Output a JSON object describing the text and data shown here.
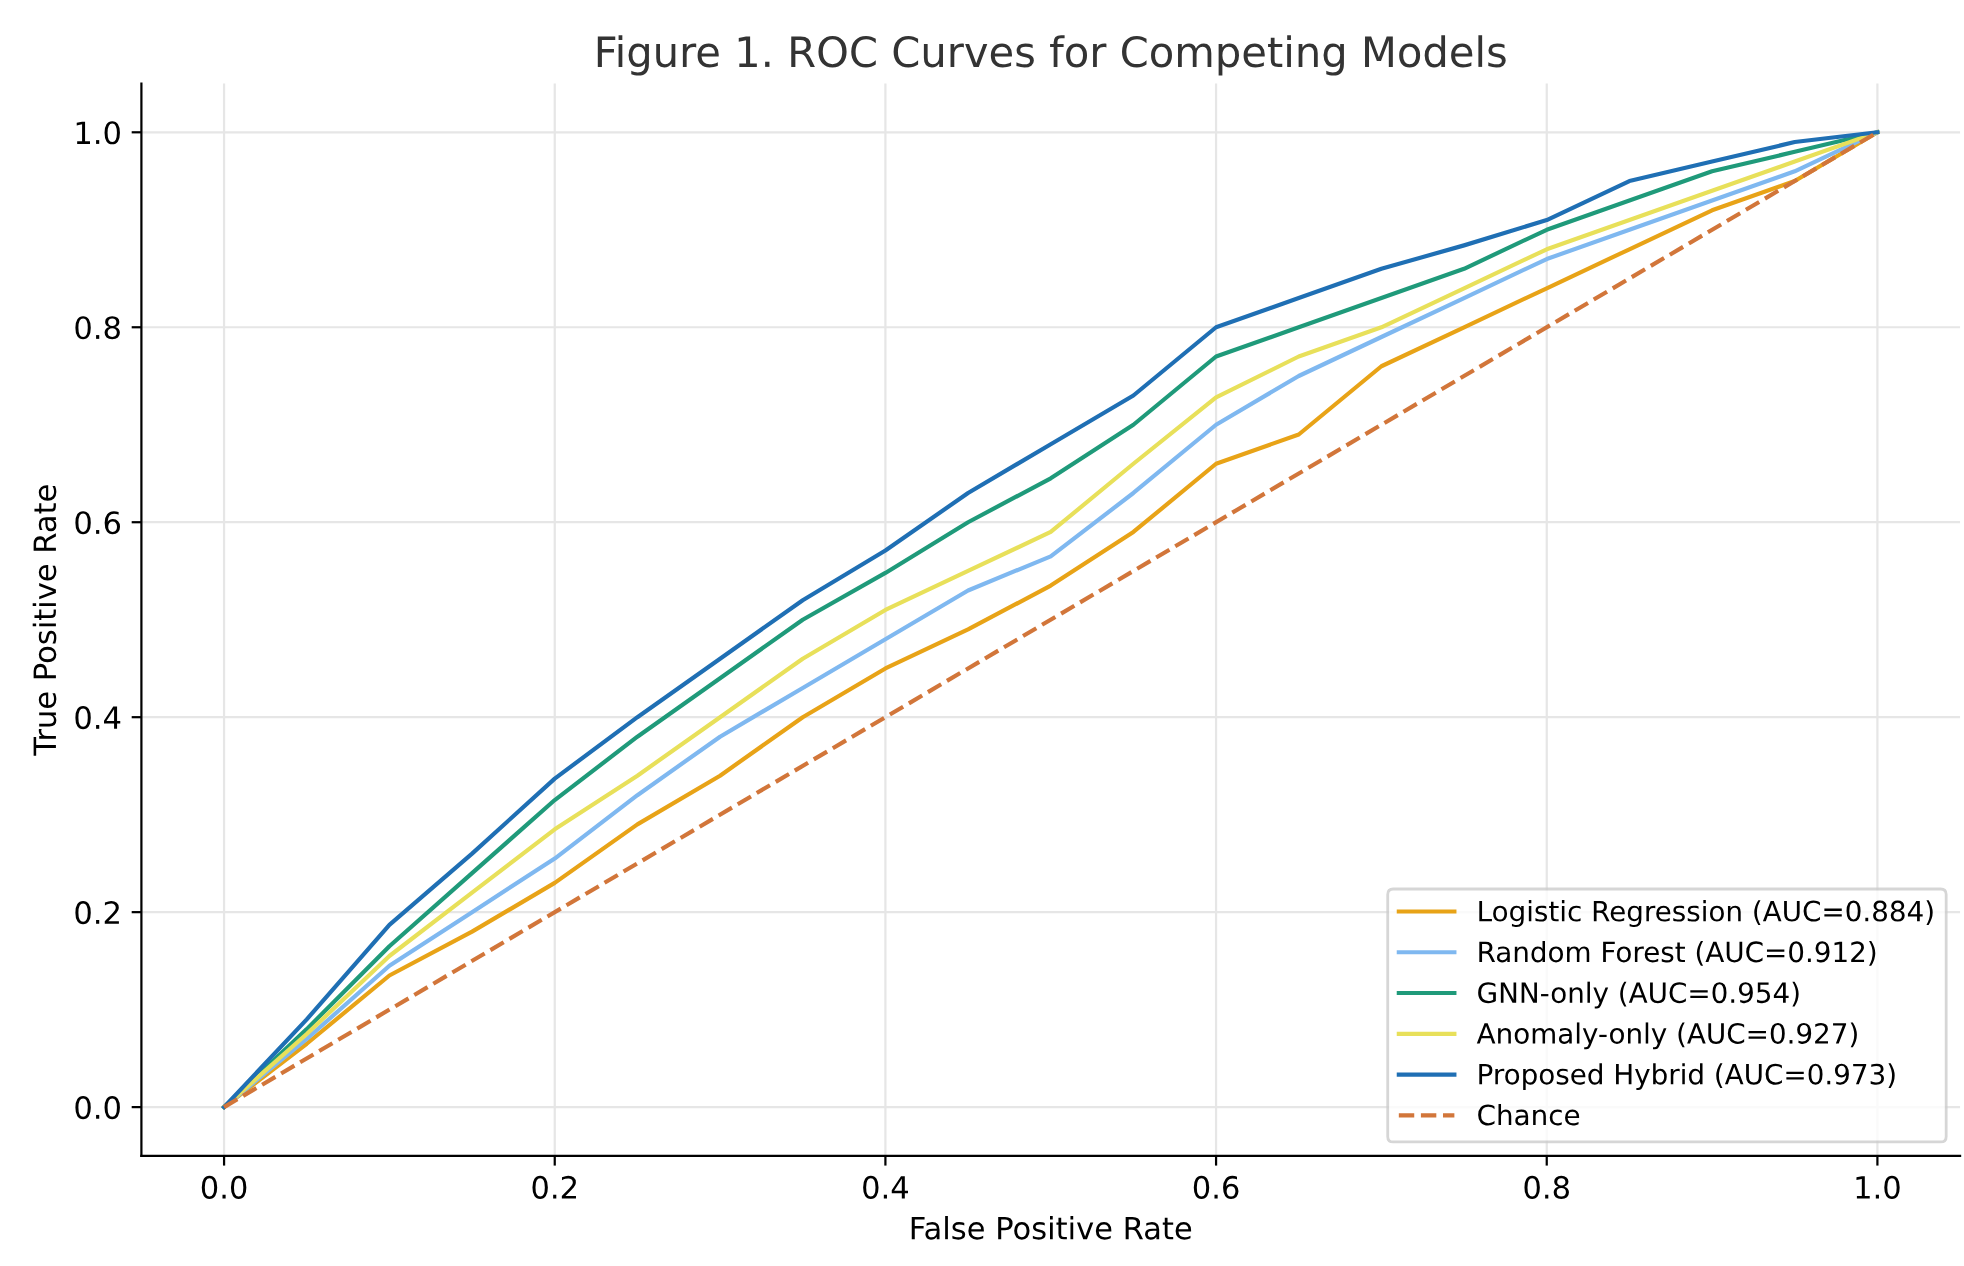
{
  "chart_data": {
    "type": "line",
    "title": "Figure 1. ROC Curves for Competing Models",
    "xlabel": "False Positive Rate",
    "ylabel": "True Positive Rate",
    "x": [
      0,
      0.05,
      0.1,
      0.15,
      0.2,
      0.25,
      0.3,
      0.35,
      0.4,
      0.45,
      0.5,
      0.55,
      0.6,
      0.65,
      0.7,
      0.75,
      0.8,
      0.85,
      0.9,
      0.95,
      1.0
    ],
    "series": [
      {
        "name": "Logistic Regression (AUC=0.884)",
        "color": "#e8a317",
        "values": [
          0,
          0.065,
          0.135,
          0.18,
          0.23,
          0.29,
          0.34,
          0.4,
          0.45,
          0.49,
          0.535,
          0.59,
          0.66,
          0.69,
          0.76,
          0.8,
          0.84,
          0.88,
          0.92,
          0.95,
          1.0
        ]
      },
      {
        "name": "Random Forest (AUC=0.912)",
        "color": "#7fb8f0",
        "values": [
          0,
          0.07,
          0.145,
          0.2,
          0.255,
          0.32,
          0.38,
          0.43,
          0.48,
          0.53,
          0.565,
          0.63,
          0.7,
          0.75,
          0.79,
          0.83,
          0.87,
          0.9,
          0.93,
          0.96,
          1.0
        ]
      },
      {
        "name": "GNN-only (AUC=0.954)",
        "color": "#1f9a7a",
        "values": [
          0,
          0.08,
          0.165,
          0.24,
          0.315,
          0.38,
          0.44,
          0.5,
          0.548,
          0.6,
          0.645,
          0.7,
          0.77,
          0.8,
          0.83,
          0.86,
          0.9,
          0.93,
          0.96,
          0.98,
          1.0
        ]
      },
      {
        "name": "Anomaly-only (AUC=0.927)",
        "color": "#e8e05a",
        "values": [
          0,
          0.075,
          0.155,
          0.22,
          0.285,
          0.34,
          0.4,
          0.46,
          0.51,
          0.55,
          0.59,
          0.66,
          0.728,
          0.77,
          0.8,
          0.84,
          0.88,
          0.91,
          0.94,
          0.97,
          1.0
        ]
      },
      {
        "name": "Proposed Hybrid (AUC=0.973)",
        "color": "#1f6fb4",
        "values": [
          0,
          0.09,
          0.187,
          0.26,
          0.337,
          0.4,
          0.46,
          0.52,
          0.571,
          0.63,
          0.68,
          0.73,
          0.8,
          0.83,
          0.86,
          0.884,
          0.91,
          0.95,
          0.97,
          0.99,
          1.0
        ]
      },
      {
        "name": "Chance",
        "color": "#d2763a",
        "line_style": "dashed",
        "x": [
          0,
          1
        ],
        "values": [
          0,
          1
        ]
      }
    ],
    "xlim": [
      -0.05,
      1.05
    ],
    "ylim": [
      -0.05,
      1.05
    ],
    "xticks": [
      {
        "value": 0,
        "label": "0.0"
      },
      0.2,
      0.4,
      0.6,
      0.8,
      {
        "value": 1,
        "label": "1.0"
      }
    ],
    "yticks": [
      {
        "value": 0,
        "label": "0.0"
      },
      0.2,
      0.4,
      0.6,
      0.8,
      {
        "value": 1,
        "label": "1.0"
      }
    ],
    "grid": true,
    "legend": "bottom right",
    "line_style": "solid"
  }
}
